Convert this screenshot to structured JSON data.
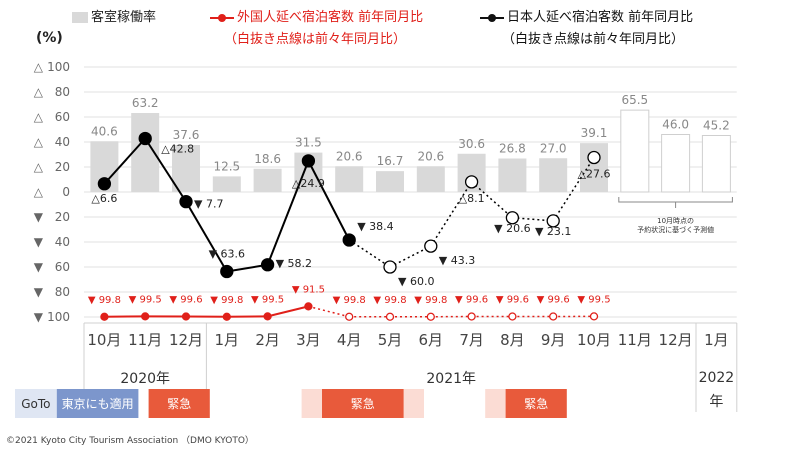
{
  "legend": {
    "occupancy": "客室稼働率",
    "foreign_line1": "外国人延べ宿泊客数  前年同月比",
    "foreign_line2": "（白抜き点線は前々年同月比）",
    "japanese_line1": "日本人延べ宿泊客数  前年同月比",
    "japanese_line2": "（白抜き点線は前々年同月比）"
  },
  "unit_label": "(%)",
  "annotation": [
    "10月時点の",
    "予約状況に基づく予測値"
  ],
  "footer": "©2021 Kyoto City Tourism Association （DMO KYOTO）",
  "periods": [
    {
      "label": "GoTo",
      "color": "#dfe6f3",
      "text_color": "#333333",
      "start": 0,
      "end": 1
    },
    {
      "label": "東京にも適用",
      "color": "#7c96cc",
      "text_color": "#ffffff",
      "start": 1,
      "end": 3
    },
    {
      "label": "緊急",
      "color": "#e85a3b",
      "text_color": "#ffffff",
      "start": 3.25,
      "end": 4.75
    },
    {
      "label": "",
      "color": "#fbdcd4",
      "text_color": "#ffffff",
      "start": 7,
      "end": 10
    },
    {
      "label": "緊急",
      "color": "#e85a3b",
      "text_color": "#ffffff",
      "start": 7.5,
      "end": 9.5
    },
    {
      "label": "",
      "color": "#fbdcd4",
      "text_color": "#ffffff",
      "start": 11.5,
      "end": 12
    },
    {
      "label": "緊急",
      "color": "#e85a3b",
      "text_color": "#ffffff",
      "start": 12,
      "end": 13.5
    }
  ],
  "chart_data": {
    "type": "bar",
    "categories": [
      "10月",
      "11月",
      "12月",
      "1月",
      "2月",
      "3月",
      "4月",
      "5月",
      "6月",
      "7月",
      "8月",
      "9月",
      "10月",
      "11月",
      "12月",
      "1月"
    ],
    "year_labels": [
      {
        "label": "2020年",
        "from": 0,
        "to": 2
      },
      {
        "label": "2021年",
        "from": 3,
        "to": 14
      },
      {
        "label": "2022年",
        "from": 15,
        "to": 15
      }
    ],
    "ylabel": "(%)",
    "ylim": [
      -100,
      100
    ],
    "y_ticks": [
      100,
      80,
      60,
      40,
      20,
      0,
      -20,
      -40,
      -60,
      -80,
      -100
    ],
    "y_tick_labels": [
      "△ 100",
      "△ 80",
      "△ 60",
      "△ 40",
      "△ 20",
      "△ 0",
      "▼ 20",
      "▼ 40",
      "▼ 60",
      "▼ 80",
      "▼ 100"
    ],
    "occupancy": {
      "name": "客室稼働率",
      "color": "#d9d9d9",
      "values": [
        40.6,
        63.2,
        37.6,
        12.5,
        18.6,
        31.5,
        20.6,
        16.7,
        20.6,
        30.6,
        26.8,
        27.0,
        39.1,
        65.5,
        46.0,
        45.2
      ],
      "labels": [
        "40.6",
        "63.2",
        "37.6",
        "12.5",
        "18.6",
        "31.5",
        "20.6",
        "16.7",
        "20.6",
        "30.6",
        "26.8",
        "27.0",
        "39.1",
        "65.5",
        "46.0",
        "45.2"
      ],
      "forecast_from": 13
    },
    "japanese": {
      "name": "日本人延べ宿泊客数 前年同月比",
      "color": "#000000",
      "values": [
        6.6,
        42.8,
        -7.7,
        -63.6,
        -58.2,
        24.9,
        -38.4,
        -60.0,
        -43.3,
        8.1,
        -20.6,
        -23.1,
        27.6
      ],
      "labels": [
        "△6.6",
        "△42.8",
        "▼ 7.7",
        "▼ 63.6",
        "▼ 58.2",
        "△24.9",
        "▼ 38.4",
        "▼ 60.0",
        "▼ 43.3",
        "△8.1",
        "▼ 20.6",
        "▼ 23.1",
        "△27.6"
      ],
      "hollow_from": 7
    },
    "foreign": {
      "name": "外国人延べ宿泊客数 前年同月比",
      "color": "#e0201a",
      "values": [
        -99.8,
        -99.5,
        -99.6,
        -99.8,
        -99.5,
        -91.5,
        -99.8,
        -99.8,
        -99.8,
        -99.6,
        -99.6,
        -99.6,
        -99.5
      ],
      "labels": [
        "▼ 99.8",
        "▼ 99.5",
        "▼ 99.6",
        "▼ 99.8",
        "▼ 99.5",
        "▼ 91.5",
        "▼ 99.8",
        "▼ 99.8",
        "▼ 99.8",
        "▼ 99.6",
        "▼ 99.6",
        "▼ 99.6",
        "▼ 99.5"
      ],
      "hollow_from": 6
    }
  }
}
